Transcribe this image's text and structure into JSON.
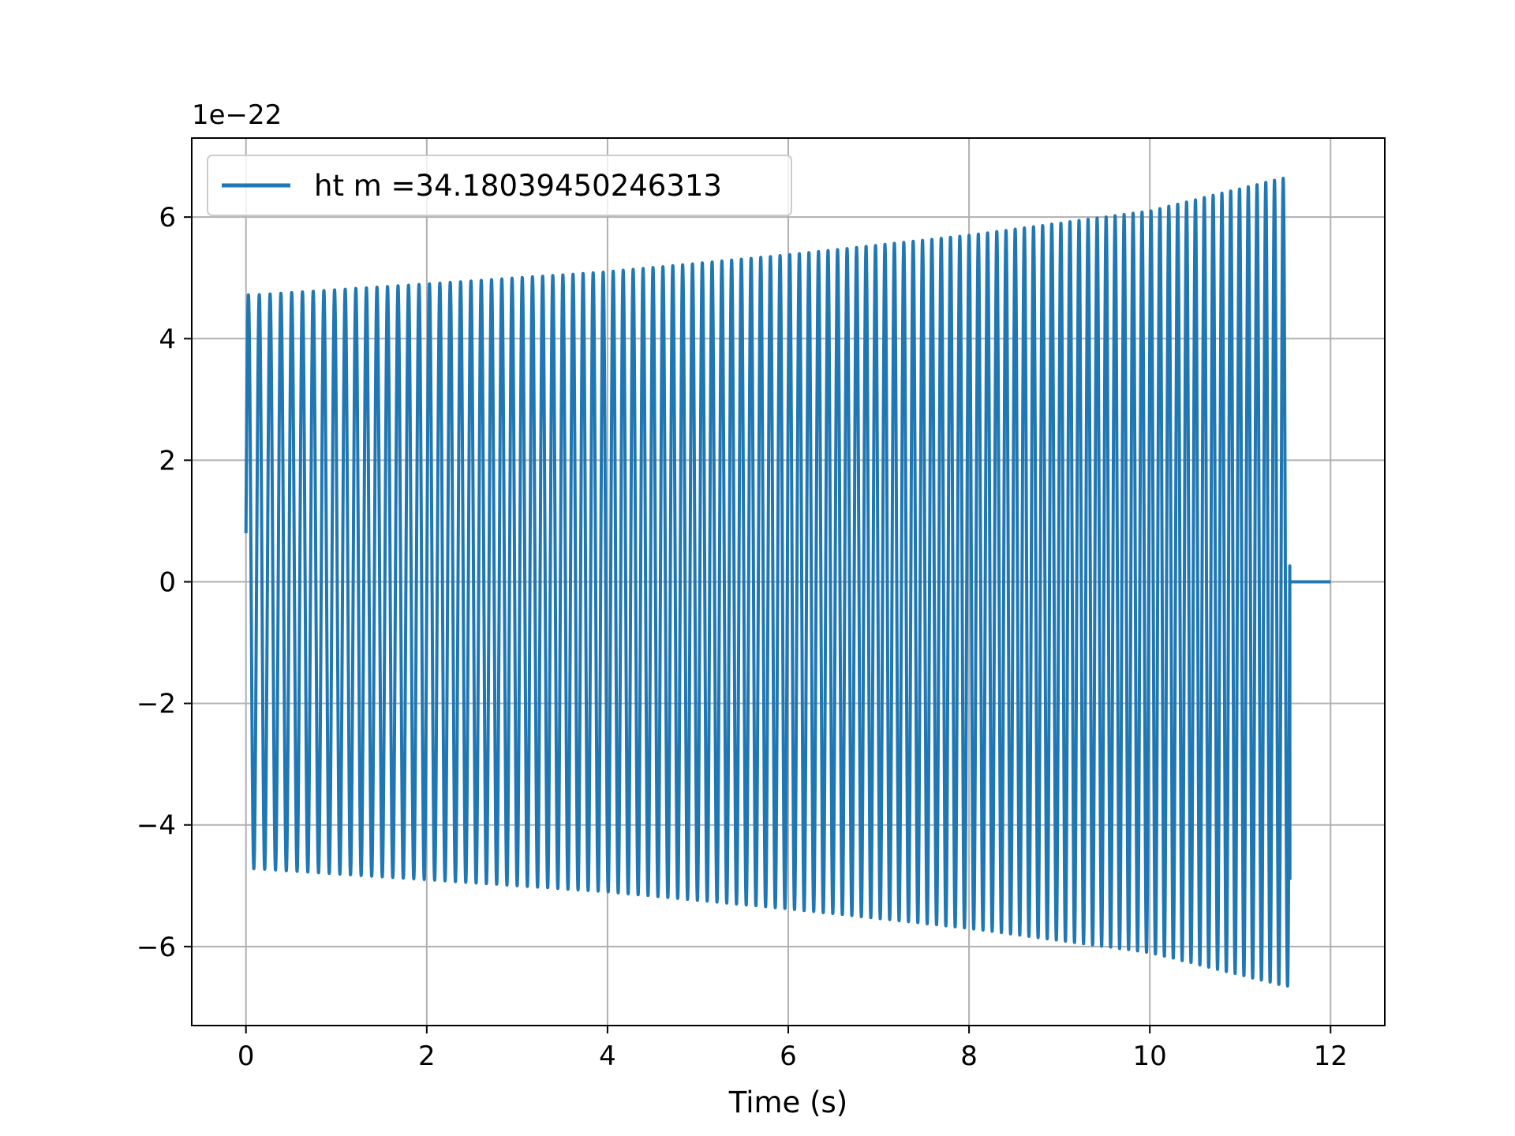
{
  "chart_data": {
    "type": "line",
    "title": "",
    "xlabel": "Time (s)",
    "ylabel": "",
    "offset_text": "1e−22",
    "y_scale_factor": 1e-22,
    "xlim": [
      -0.6,
      12.6
    ],
    "ylim": [
      -7.3,
      7.3
    ],
    "xticks": [
      0,
      2,
      4,
      6,
      8,
      10,
      12
    ],
    "yticks": [
      -6,
      -4,
      -2,
      0,
      2,
      4,
      6
    ],
    "xtick_labels": [
      "0",
      "2",
      "4",
      "6",
      "8",
      "10",
      "12"
    ],
    "ytick_labels": [
      "−6",
      "−4",
      "−2",
      "0",
      "2",
      "4",
      "6"
    ],
    "grid": true,
    "legend_position": "upper left",
    "series": [
      {
        "name": "ht m =34.18039450246313",
        "color": "#1f77b4",
        "envelope_upper": [
          [
            0.1,
            4.72
          ],
          [
            2.0,
            4.9
          ],
          [
            4.0,
            5.1
          ],
          [
            6.0,
            5.38
          ],
          [
            8.0,
            5.7
          ],
          [
            10.0,
            6.1
          ],
          [
            11.5,
            6.65
          ]
        ],
        "envelope_lower": [
          [
            0.1,
            -4.72
          ],
          [
            2.0,
            -4.9
          ],
          [
            4.0,
            -5.1
          ],
          [
            6.0,
            -5.38
          ],
          [
            8.0,
            -5.7
          ],
          [
            10.0,
            -6.1
          ],
          [
            11.5,
            -6.65
          ]
        ],
        "start_value": 0.8,
        "signal_end": 11.55,
        "end_value": -4.9,
        "zero_line_range": [
          11.55,
          12.0
        ],
        "frequency_start_hz": 8.3,
        "frequency_end_hz": 10.4
      }
    ]
  }
}
